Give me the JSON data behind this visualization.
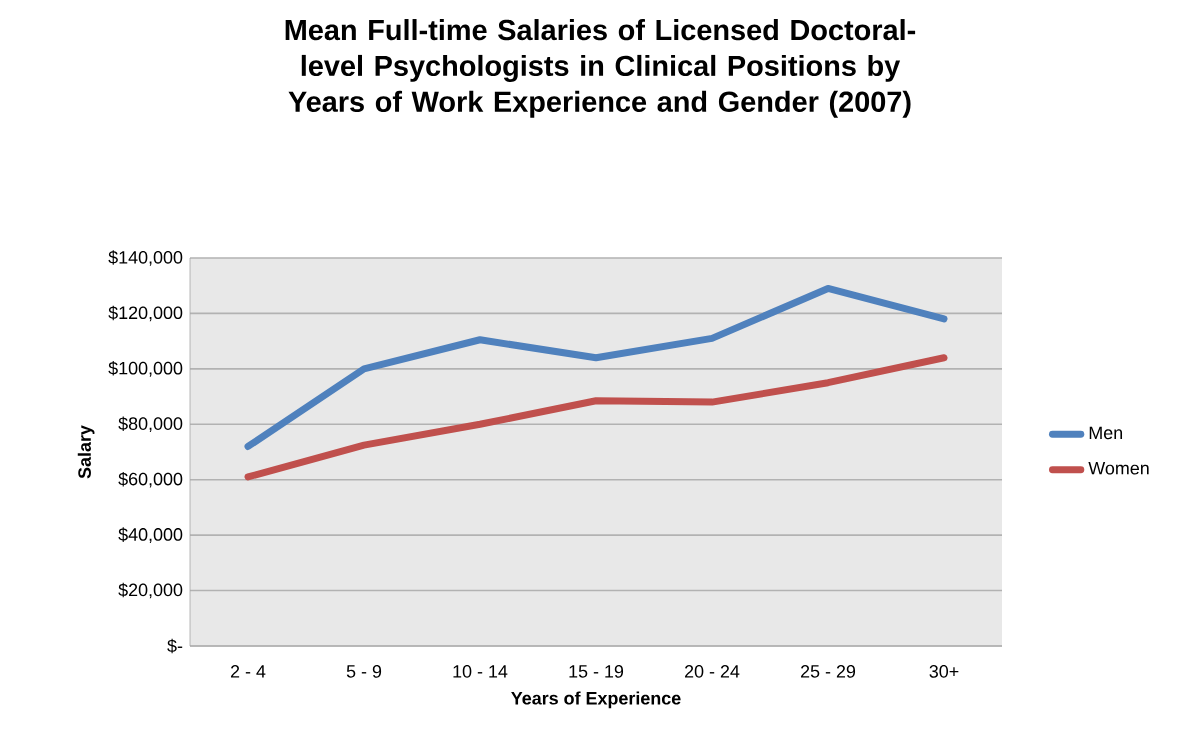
{
  "chart_data": {
    "type": "line",
    "title": "Mean Full-time Salaries of Licensed Doctoral-level Psychologists in Clinical Positions by Years of Work Experience and Gender (2007)",
    "xlabel": "Years of Experience",
    "ylabel": "Salary",
    "categories": [
      "2 - 4",
      "5 - 9",
      "10 - 14",
      "15 - 19",
      "20 - 24",
      "25 - 29",
      "30+"
    ],
    "series": [
      {
        "name": "Men",
        "color": "#4f81bd",
        "values": [
          72000,
          100000,
          110500,
          104000,
          111000,
          129000,
          118000
        ]
      },
      {
        "name": "Women",
        "color": "#c0504d",
        "values": [
          61000,
          72500,
          80000,
          88500,
          88000,
          95000,
          104000
        ]
      }
    ],
    "ylim": [
      0,
      140000
    ],
    "yticks": [
      {
        "value": 0,
        "label": "$-"
      },
      {
        "value": 20000,
        "label": "$20,000"
      },
      {
        "value": 40000,
        "label": "$40,000"
      },
      {
        "value": 60000,
        "label": "$60,000"
      },
      {
        "value": 80000,
        "label": "$80,000"
      },
      {
        "value": 100000,
        "label": "$100,000"
      },
      {
        "value": 120000,
        "label": "$120,000"
      },
      {
        "value": 140000,
        "label": "$140,000"
      }
    ],
    "grid": "y",
    "legend": "right",
    "marker": "none",
    "line_style": "solid"
  }
}
